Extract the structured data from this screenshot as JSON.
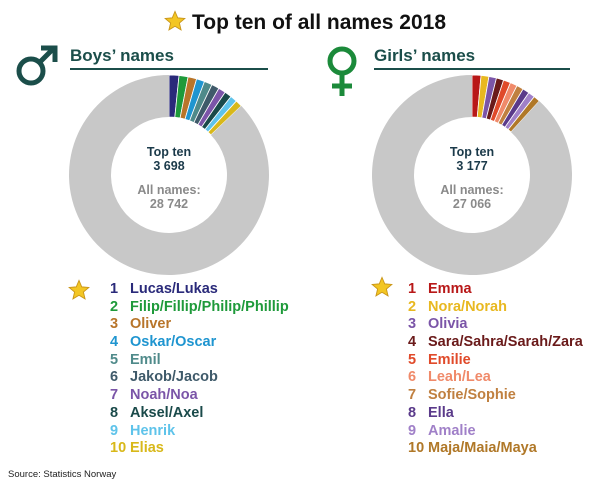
{
  "title": "Top ten of all names 2018",
  "source": "Source: Statistics Norway",
  "colors": {
    "dark_teal": "#1b4e4a",
    "other_names": "#c8c8c8",
    "star": "#f3c623"
  },
  "boys": {
    "heading": "Boys’ names",
    "icon": "male-symbol-icon",
    "top_label": "Top ten",
    "top_value": "3 698",
    "all_label": "All names:",
    "all_value": "28 742",
    "names": [
      {
        "rank": "1",
        "name": "Lucas/Lukas",
        "color": "#2a2a7a"
      },
      {
        "rank": "2",
        "name": "Filip/Fillip/Philip/Phillip",
        "color": "#1e9a3a"
      },
      {
        "rank": "3",
        "name": "Oliver",
        "color": "#b8752a"
      },
      {
        "rank": "4",
        "name": "Oskar/Oscar",
        "color": "#1f95d0"
      },
      {
        "rank": "5",
        "name": "Emil",
        "color": "#4f8a8a"
      },
      {
        "rank": "6",
        "name": "Jakob/Jacob",
        "color": "#3f5a6a"
      },
      {
        "rank": "7",
        "name": "Noah/Noa",
        "color": "#7b55a8"
      },
      {
        "rank": "8",
        "name": "Aksel/Axel",
        "color": "#1a4a4a"
      },
      {
        "rank": "9",
        "name": "Henrik",
        "color": "#5ec3ea"
      },
      {
        "rank": "10",
        "name": "Elias",
        "color": "#d8b81a"
      }
    ]
  },
  "girls": {
    "heading": "Girls’ names",
    "icon": "female-symbol-icon",
    "top_label": "Top ten",
    "top_value": "3 177",
    "all_label": "All names:",
    "all_value": "27 066",
    "names": [
      {
        "rank": "1",
        "name": "Emma",
        "color": "#b81818"
      },
      {
        "rank": "2",
        "name": "Nora/Norah",
        "color": "#e8b820"
      },
      {
        "rank": "3",
        "name": "Olivia",
        "color": "#7b55a8"
      },
      {
        "rank": "4",
        "name": "Sara/Sahra/Sarah/Zara",
        "color": "#6a1a1a"
      },
      {
        "rank": "5",
        "name": "Emilie",
        "color": "#e04a2a"
      },
      {
        "rank": "6",
        "name": "Leah/Lea",
        "color": "#f08a6a"
      },
      {
        "rank": "7",
        "name": "Sofie/Sophie",
        "color": "#c08040"
      },
      {
        "rank": "8",
        "name": "Ella",
        "color": "#5a3a8a"
      },
      {
        "rank": "9",
        "name": "Amalie",
        "color": "#a080c8"
      },
      {
        "rank": "10",
        "name": "Maja/Maia/Maya",
        "color": "#b07828"
      }
    ]
  },
  "chart_data": [
    {
      "type": "pie",
      "title": "Boys’ names",
      "total": 28742,
      "top_ten_total": 3698,
      "categories": [
        "Lucas/Lukas",
        "Filip/Fillip/Philip/Phillip",
        "Oliver",
        "Oskar/Oscar",
        "Emil",
        "Jakob/Jacob",
        "Noah/Noa",
        "Aksel/Axel",
        "Henrik",
        "Elias",
        "Other names"
      ],
      "values": [
        460,
        420,
        400,
        380,
        370,
        360,
        340,
        330,
        320,
        318,
        25044
      ]
    },
    {
      "type": "pie",
      "title": "Girls’ names",
      "total": 27066,
      "top_ten_total": 3177,
      "categories": [
        "Emma",
        "Nora/Norah",
        "Olivia",
        "Sara/Sahra/Sarah/Zara",
        "Emilie",
        "Leah/Lea",
        "Sofie/Sophie",
        "Ella",
        "Amalie",
        "Maja/Maia/Maya",
        "Other names"
      ],
      "values": [
        390,
        345,
        330,
        320,
        315,
        310,
        300,
        295,
        290,
        282,
        23889
      ]
    }
  ]
}
